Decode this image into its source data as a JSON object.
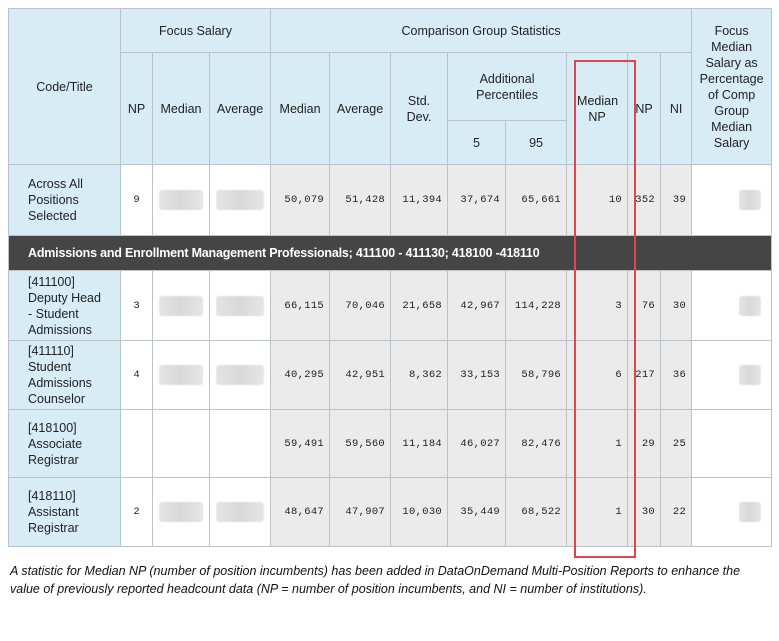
{
  "table": {
    "headers": {
      "code_title": "Code/Title",
      "focus_salary": "Focus Salary",
      "comparison": "Comparison Group Statistics",
      "focus_pct": "Focus Median Salary as Percentage of Comp Group Median Salary",
      "np": "NP",
      "median": "Median",
      "average": "Average",
      "comp_median": "Median",
      "comp_average": "Average",
      "std_dev": "Std. Dev.",
      "additional_percentiles": "Additional Percentiles",
      "median_np": "Median NP",
      "comp_np": "NP",
      "ni": "NI",
      "p5": "5",
      "p95": "95"
    },
    "rows": [
      {
        "title": "Across All Positions Selected",
        "focus_np": "9",
        "values": [
          "50,079",
          "51,428",
          "11,394",
          "37,674",
          "65,661",
          "10",
          "352",
          "39"
        ]
      },
      {
        "section": "Admissions and Enrollment Management Professionals; 411100 - 411130; 418100 -418110"
      },
      {
        "title": "[411100] Deputy Head - Student Admissions",
        "focus_np": "3",
        "values": [
          "66,115",
          "70,046",
          "21,658",
          "42,967",
          "114,228",
          "3",
          "76",
          "30"
        ]
      },
      {
        "title": "[411110] Student Admissions Counselor",
        "focus_np": "4",
        "values": [
          "40,295",
          "42,951",
          "8,362",
          "33,153",
          "58,796",
          "6",
          "217",
          "36"
        ]
      },
      {
        "title": "[418100] Associate Registrar",
        "values": [
          "59,491",
          "59,560",
          "11,184",
          "46,027",
          "82,476",
          "1",
          "29",
          "25"
        ]
      },
      {
        "title": "[418110] Assistant Registrar",
        "focus_np": "2",
        "values": [
          "48,647",
          "47,907",
          "10,030",
          "35,449",
          "68,522",
          "1",
          "30",
          "22"
        ]
      }
    ]
  },
  "caption": "A statistic for Median NP (number of position incumbents) has been added in DataOnDemand Multi-Position Reports to enhance the value of previously reported headcount data (NP = number of position incumbents, and NI = number of institutions)."
}
